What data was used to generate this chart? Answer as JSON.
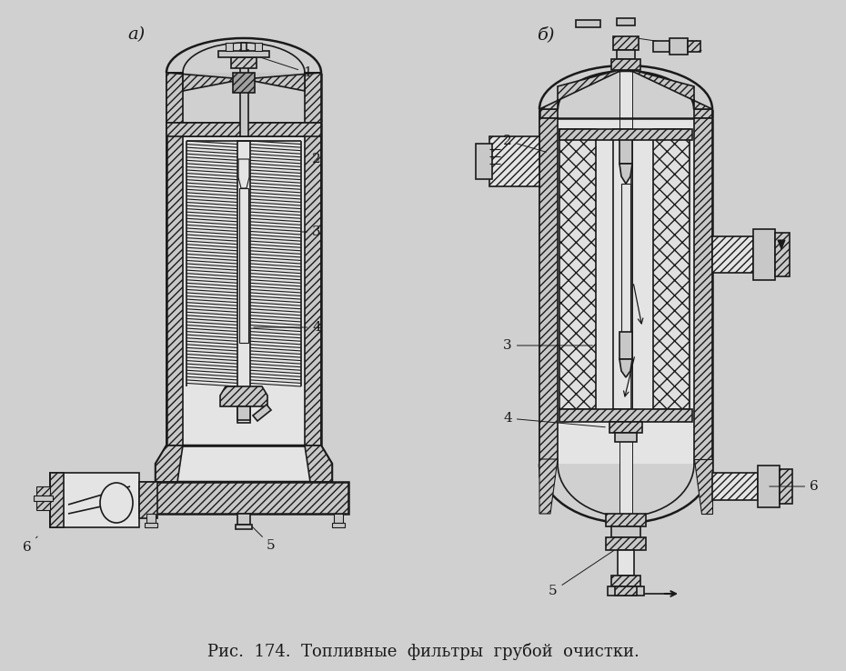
{
  "bg_color": "#d0d0d0",
  "lc": "#1a1a1a",
  "wc": "#c8c8c8",
  "hc": "#a0a0a0",
  "ic": "#e4e4e4",
  "title_a": "a)",
  "title_b": "б)",
  "caption": "Рис.  174.  Топливные  фильтры  грубой  очистки.",
  "caption_fs": 13,
  "label_fs": 11,
  "title_fs": 14,
  "fig_w": 9.3,
  "fig_h": 7.38,
  "dpi": 100
}
